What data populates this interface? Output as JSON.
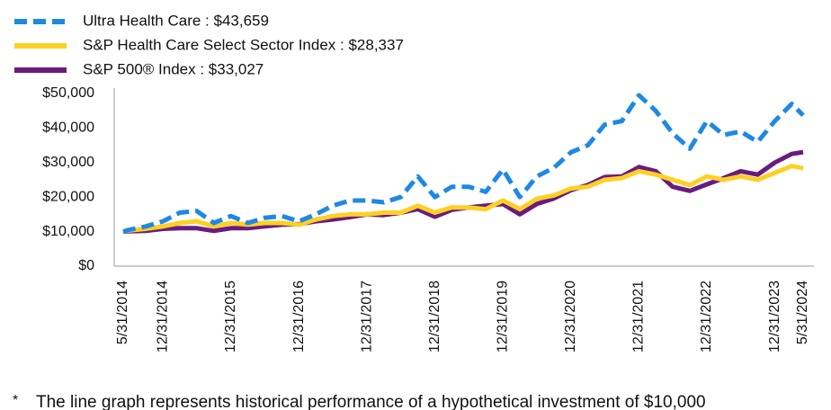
{
  "chart_data": {
    "type": "line",
    "x": [
      "5/31/2014",
      "6/30/2014",
      "9/30/2014",
      "12/31/2014",
      "3/31/2015",
      "6/30/2015",
      "9/30/2015",
      "12/31/2015",
      "3/31/2016",
      "6/30/2016",
      "9/30/2016",
      "12/31/2016",
      "3/31/2017",
      "6/30/2017",
      "9/30/2017",
      "12/31/2017",
      "3/31/2018",
      "6/30/2018",
      "9/30/2018",
      "12/31/2018",
      "3/31/2019",
      "6/30/2019",
      "9/30/2019",
      "12/31/2019",
      "3/31/2020",
      "6/30/2020",
      "9/30/2020",
      "12/31/2020",
      "3/31/2021",
      "6/30/2021",
      "9/30/2021",
      "12/31/2021",
      "3/31/2022",
      "6/30/2022",
      "9/30/2022",
      "12/31/2022",
      "3/31/2023",
      "6/30/2023",
      "9/30/2023",
      "12/31/2023",
      "3/31/2024",
      "5/31/2024"
    ],
    "xlim": [
      "5/31/2014",
      "5/31/2024"
    ],
    "xticks": [
      "5/31/2014",
      "12/31/2014",
      "12/31/2015",
      "12/31/2016",
      "12/31/2017",
      "12/31/2018",
      "12/31/2019",
      "12/31/2020",
      "12/31/2021",
      "12/31/2022",
      "12/31/2023",
      "5/31/2024"
    ],
    "ylim": [
      0,
      50000
    ],
    "yticks": [
      {
        "value": 0,
        "label": "$0"
      },
      {
        "value": 10000,
        "label": "$10,000"
      },
      {
        "value": 20000,
        "label": "$20,000"
      },
      {
        "value": 30000,
        "label": "$30,000"
      },
      {
        "value": 40000,
        "label": "$40,000"
      },
      {
        "value": 50000,
        "label": "$50,000"
      }
    ],
    "series": [
      {
        "name": "Ultra Health Care : $43,659",
        "color": "#1e88e5",
        "dashed": true,
        "values": [
          10000,
          10500,
          11500,
          13000,
          15500,
          16000,
          12500,
          14500,
          12500,
          14000,
          14500,
          13000,
          15000,
          17500,
          19000,
          19000,
          18500,
          20000,
          26000,
          20000,
          23000,
          23000,
          21500,
          28000,
          20000,
          26000,
          28500,
          33000,
          35000,
          41000,
          42000,
          49500,
          45000,
          38500,
          34000,
          42000,
          38000,
          39000,
          36000,
          42000,
          47000,
          43659
        ]
      },
      {
        "name": "S&P Health Care Select Sector Index : $28,337",
        "color": "#fdd023",
        "dashed": false,
        "values": [
          10000,
          10300,
          10800,
          11500,
          12500,
          13000,
          11500,
          12500,
          12000,
          12500,
          12500,
          12000,
          13500,
          14500,
          15000,
          15000,
          15500,
          15500,
          17500,
          15500,
          17000,
          17000,
          16500,
          19000,
          16500,
          19500,
          20500,
          22500,
          23000,
          25000,
          25500,
          27500,
          26500,
          25000,
          23500,
          26000,
          25000,
          26000,
          25000,
          27000,
          29000,
          28337
        ]
      },
      {
        "name": "S&P 500® Index : $33,027",
        "color": "#6a1b7f",
        "dashed": false,
        "values": [
          10000,
          10100,
          10200,
          10800,
          11000,
          11000,
          10200,
          11000,
          11000,
          11500,
          12000,
          12200,
          13000,
          13500,
          14200,
          15000,
          14800,
          15500,
          16500,
          14300,
          16300,
          17000,
          17500,
          18000,
          15000,
          18000,
          19600,
          22000,
          23500,
          25800,
          26000,
          28700,
          27500,
          23000,
          21800,
          23700,
          25500,
          27500,
          26500,
          30000,
          32500,
          33027
        ]
      }
    ],
    "footnote_marker": "*",
    "footnote": "The line graph represents historical performance of a hypothetical investment of $10,000"
  }
}
